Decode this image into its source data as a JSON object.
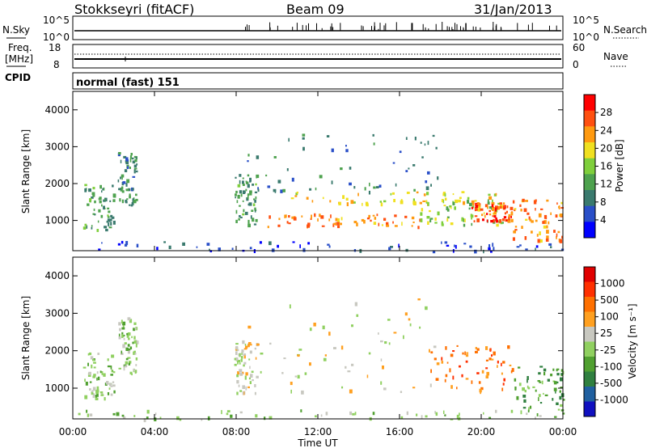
{
  "header": {
    "station": "Stokkseyri (fitACF)",
    "beam": "Beam 09",
    "date": "31/Jan/2013"
  },
  "status_panels": {
    "nsky_label": "N.Sky",
    "nsky_ticks": [
      "10^5",
      "10^0"
    ],
    "nsearch_label": "N.Search",
    "nsearch_ticks": [
      "10^5",
      "10^0"
    ],
    "freq_label": "Freq.",
    "freq_unit": "[MHz]",
    "freq_ticks": [
      "18",
      "8"
    ],
    "nave_label": "Nave",
    "nave_ticks": [
      "60",
      "0"
    ],
    "cpid_label": "CPID",
    "cpid_text": "normal (fast) 151"
  },
  "chart_data": [
    {
      "type": "heatmap",
      "name": "power",
      "ylabel": "Slant Range [km]",
      "yticks": [
        "4000",
        "3000",
        "2000",
        "1000"
      ],
      "ylim": [
        180,
        4500
      ],
      "xlim": [
        0,
        24
      ],
      "colorbar": {
        "label": "Power [dB]",
        "ticks": [
          "28",
          "24",
          "20",
          "16",
          "12",
          "8",
          "4"
        ],
        "colors": [
          "#0000ff",
          "#2a4fc8",
          "#3a7a6e",
          "#4ea24e",
          "#7fcf3c",
          "#f0e020",
          "#ff9a10",
          "#ff5010",
          "#ff0000"
        ],
        "range": [
          0,
          32
        ]
      },
      "bands": [
        {
          "t0": 0.5,
          "t1": 2.0,
          "r0": 700,
          "r1": 2000,
          "level": 12
        },
        {
          "t0": 2.2,
          "t1": 3.1,
          "r0": 1400,
          "r1": 2900,
          "level": 10
        },
        {
          "t0": 7.9,
          "t1": 9.0,
          "r0": 900,
          "r1": 2300,
          "level": 11
        },
        {
          "t0": 8.5,
          "t1": 18.0,
          "r0": 1800,
          "r1": 3400,
          "level": 8
        },
        {
          "t0": 9.5,
          "t1": 17.0,
          "r0": 850,
          "r1": 1200,
          "level": 24
        },
        {
          "t0": 10.5,
          "t1": 21.0,
          "r0": 1450,
          "r1": 1800,
          "level": 20
        },
        {
          "t0": 17.0,
          "t1": 21.0,
          "r0": 900,
          "r1": 1600,
          "level": 16
        },
        {
          "t0": 19.5,
          "t1": 21.5,
          "r0": 1000,
          "r1": 1500,
          "level": 26
        },
        {
          "t0": 21.5,
          "t1": 24.0,
          "r0": 400,
          "r1": 1600,
          "level": 24
        },
        {
          "t0": 0.0,
          "t1": 24.0,
          "r0": 180,
          "r1": 450,
          "level": 6
        }
      ]
    },
    {
      "type": "heatmap",
      "name": "velocity",
      "ylabel": "Slant Range [km]",
      "xlabel": "Time UT",
      "yticks": [
        "4000",
        "3000",
        "2000",
        "1000"
      ],
      "ylim": [
        180,
        4500
      ],
      "xlim": [
        0,
        24
      ],
      "xticks": [
        "00:00",
        "04:00",
        "08:00",
        "12:00",
        "16:00",
        "20:00",
        "00:00"
      ],
      "colorbar": {
        "label": "Velocity [m s⁻¹]",
        "ticks": [
          "1000",
          "500",
          "100",
          "25",
          "-25",
          "-100",
          "-500",
          "-1000"
        ],
        "colors": [
          "#1010c0",
          "#2060a0",
          "#308040",
          "#50a030",
          "#90d060",
          "#c8c8c0",
          "#ffa020",
          "#ff7000",
          "#ff3000",
          "#e00000"
        ]
      },
      "bands": [
        {
          "t0": 0.5,
          "t1": 2.0,
          "r0": 700,
          "r1": 2000,
          "vclass": 4
        },
        {
          "t0": 2.2,
          "t1": 3.1,
          "r0": 1400,
          "r1": 2900,
          "vclass": 4
        },
        {
          "t0": 7.9,
          "t1": 9.0,
          "r0": 900,
          "r1": 2300,
          "vclass": 5
        },
        {
          "t0": 8.5,
          "t1": 18.0,
          "r0": 850,
          "r1": 3400,
          "vclass": 5
        },
        {
          "t0": 17.5,
          "t1": 21.5,
          "r0": 900,
          "r1": 2200,
          "vclass": 7
        },
        {
          "t0": 21.5,
          "t1": 24.0,
          "r0": 400,
          "r1": 1600,
          "vclass": 3
        },
        {
          "t0": 0.0,
          "t1": 24.0,
          "r0": 180,
          "r1": 450,
          "vclass": 4
        }
      ]
    }
  ]
}
